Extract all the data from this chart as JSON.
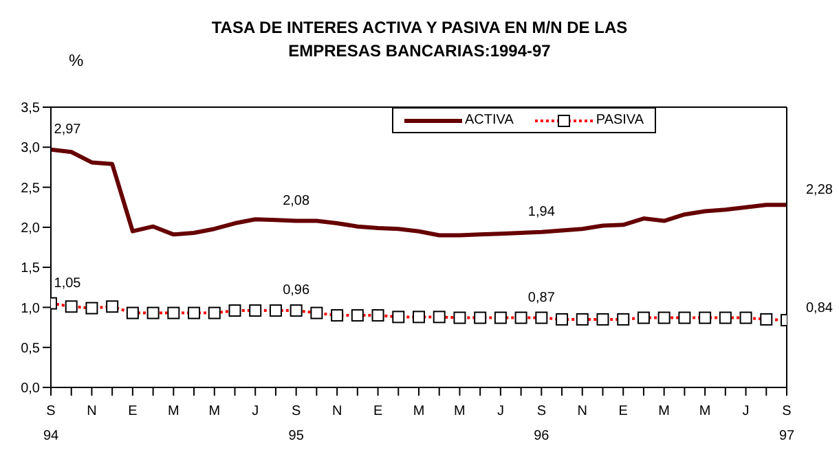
{
  "chart_data": {
    "type": "line",
    "title": "TASA DE INTERES ACTIVA Y PASIVA EN M/N DE LAS EMPRESAS BANCARIAS:1994-97",
    "ylabel": "%",
    "categories": [
      "S\n94",
      null,
      "N",
      null,
      "E",
      null,
      "M",
      null,
      "M",
      null,
      "J",
      null,
      "S\n95",
      null,
      "N",
      null,
      "E",
      null,
      "M",
      null,
      "M",
      null,
      "J",
      null,
      "S\n96",
      null,
      "N",
      null,
      "E",
      null,
      "M",
      null,
      "M",
      null,
      "J",
      null,
      "S\n97"
    ],
    "series": [
      {
        "name": "ACTIVA",
        "color": "#660000",
        "marker": "none",
        "line_style": "solid",
        "values": [
          2.97,
          2.94,
          2.81,
          2.79,
          1.95,
          2.01,
          1.91,
          1.93,
          1.98,
          2.05,
          2.1,
          2.09,
          2.08,
          2.08,
          2.05,
          2.01,
          1.99,
          1.98,
          1.95,
          1.9,
          1.9,
          1.91,
          1.92,
          1.93,
          1.94,
          1.96,
          1.98,
          2.02,
          2.03,
          2.11,
          2.08,
          2.16,
          2.2,
          2.22,
          2.25,
          2.28,
          2.28
        ],
        "value_labels": [
          "2,97",
          null,
          null,
          null,
          null,
          null,
          null,
          null,
          null,
          null,
          null,
          null,
          "2,08",
          null,
          null,
          null,
          null,
          null,
          null,
          null,
          null,
          null,
          null,
          null,
          "1,94",
          null,
          null,
          null,
          null,
          null,
          null,
          null,
          null,
          null,
          null,
          null,
          "2,28"
        ]
      },
      {
        "name": "PASIVA",
        "color": "#ff0000",
        "marker": "square",
        "line_style": "dotted",
        "values": [
          1.05,
          1.01,
          0.99,
          1.01,
          0.93,
          0.93,
          0.93,
          0.93,
          0.93,
          0.96,
          0.96,
          0.96,
          0.96,
          0.93,
          0.9,
          0.9,
          0.9,
          0.88,
          0.88,
          0.88,
          0.87,
          0.87,
          0.87,
          0.87,
          0.87,
          0.85,
          0.85,
          0.85,
          0.85,
          0.87,
          0.87,
          0.87,
          0.87,
          0.87,
          0.87,
          0.85,
          0.84
        ],
        "value_labels": [
          "1,05",
          null,
          null,
          null,
          null,
          null,
          null,
          null,
          null,
          null,
          null,
          null,
          "0,96",
          null,
          null,
          null,
          null,
          null,
          null,
          null,
          null,
          null,
          null,
          null,
          "0,87",
          null,
          null,
          null,
          null,
          null,
          null,
          null,
          null,
          null,
          null,
          null,
          "0,84"
        ]
      }
    ],
    "ylim": [
      0,
      3.5
    ],
    "yticks": [
      {
        "value": 0,
        "label": "0,0"
      },
      {
        "value": 0.5,
        "label": "0,5"
      },
      {
        "value": 1,
        "label": "1,0"
      },
      {
        "value": 1.5,
        "label": "1,5"
      },
      {
        "value": 2,
        "label": "2,0"
      },
      {
        "value": 2.5,
        "label": "2,5"
      },
      {
        "value": 3,
        "label": "3,0"
      },
      {
        "value": 3.5,
        "label": "3,5"
      }
    ],
    "legend": "top",
    "grid": false
  }
}
